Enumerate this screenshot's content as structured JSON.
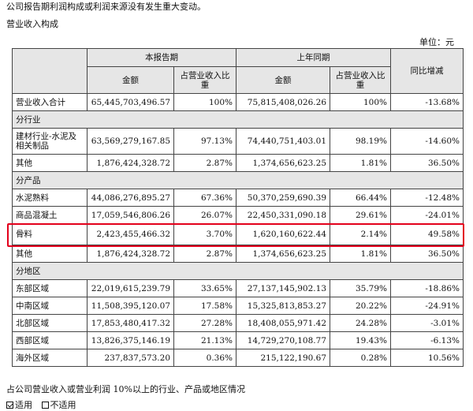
{
  "intro": "公司报告期利润构成或利润来源没有发生重大变动。",
  "section_title": "营业收入构成",
  "unit": "单位：元",
  "headers": {
    "current": "本报告期",
    "previous": "上年同期",
    "yoy": "同比增减",
    "amount": "金额",
    "share": "占营业收入比重"
  },
  "total": {
    "label": "营业收入合计",
    "cur_amount": "65,445,703,496.57",
    "cur_share": "100%",
    "prev_amount": "75,815,408,026.26",
    "prev_share": "100%",
    "yoy": "-13.68%"
  },
  "sections": [
    {
      "title": "分行业",
      "rows": [
        {
          "label": "建材行业-水泥及相关制品",
          "cur_amount": "63,569,279,167.85",
          "cur_share": "97.13%",
          "prev_amount": "74,440,751,403.01",
          "prev_share": "98.19%",
          "yoy": "-14.60%"
        },
        {
          "label": "其他",
          "cur_amount": "1,876,424,328.72",
          "cur_share": "2.87%",
          "prev_amount": "1,374,656,623.25",
          "prev_share": "1.81%",
          "yoy": "36.50%"
        }
      ]
    },
    {
      "title": "分产品",
      "rows": [
        {
          "label": "水泥熟料",
          "cur_amount": "44,086,276,895.27",
          "cur_share": "67.36%",
          "prev_amount": "50,370,259,690.39",
          "prev_share": "66.44%",
          "yoy": "-12.48%"
        },
        {
          "label": "商品混凝土",
          "cur_amount": "17,059,546,806.26",
          "cur_share": "26.07%",
          "prev_amount": "22,450,331,090.18",
          "prev_share": "29.61%",
          "yoy": "-24.01%"
        },
        {
          "label": "骨料",
          "cur_amount": "2,423,455,466.32",
          "cur_share": "3.70%",
          "prev_amount": "1,620,160,622.44",
          "prev_share": "2.14%",
          "yoy": "49.58%"
        },
        {
          "label": "其他",
          "cur_amount": "1,876,424,328.72",
          "cur_share": "2.87%",
          "prev_amount": "1,374,656,623.25",
          "prev_share": "1.81%",
          "yoy": "36.50%"
        }
      ]
    },
    {
      "title": "分地区",
      "rows": [
        {
          "label": "东部区域",
          "cur_amount": "22,019,615,239.79",
          "cur_share": "33.65%",
          "prev_amount": "27,137,145,902.13",
          "prev_share": "35.79%",
          "yoy": "-18.86%"
        },
        {
          "label": "中南区域",
          "cur_amount": "11,508,395,120.07",
          "cur_share": "17.58%",
          "prev_amount": "15,325,813,853.27",
          "prev_share": "20.22%",
          "yoy": "-24.91%"
        },
        {
          "label": "北部区域",
          "cur_amount": "17,853,480,417.32",
          "cur_share": "27.28%",
          "prev_amount": "18,408,055,971.42",
          "prev_share": "24.28%",
          "yoy": "-3.01%"
        },
        {
          "label": "西部区域",
          "cur_amount": "13,826,375,146.19",
          "cur_share": "21.13%",
          "prev_amount": "14,729,270,108.77",
          "prev_share": "19.43%",
          "yoy": "-6.13%"
        },
        {
          "label": "海外区域",
          "cur_amount": "237,837,573.20",
          "cur_share": "0.36%",
          "prev_amount": "215,122,190.67",
          "prev_share": "0.28%",
          "yoy": "10.56%"
        }
      ]
    }
  ],
  "footnote": "占公司营业收入或营业利润 10%以上的行业、产品或地区情况",
  "options": [
    {
      "label": "适用",
      "checked": true
    },
    {
      "label": "不适用",
      "checked": false
    }
  ]
}
